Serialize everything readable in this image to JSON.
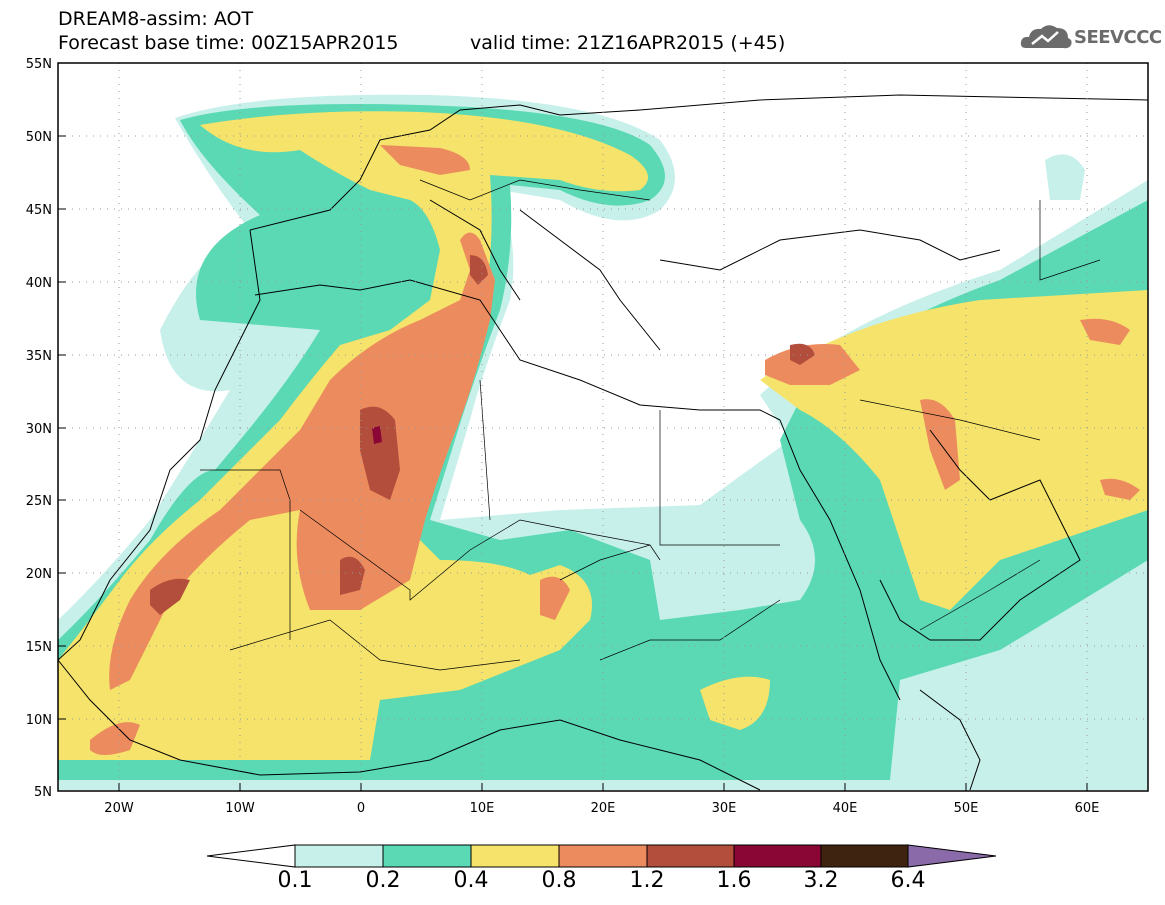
{
  "header": {
    "line1": "DREAM8-assim: AOT",
    "line2": "Forecast base time: 00Z15APR2015",
    "valid": "valid time: 21Z16APR2015 (+45)"
  },
  "logo": {
    "text": "SEEVCCC",
    "icon": "cloud-icon"
  },
  "map": {
    "lon_range": [
      -25,
      65
    ],
    "lat_range": [
      5,
      55
    ],
    "grid": "dotted",
    "lat_labels": [
      "55N",
      "50N",
      "45N",
      "40N",
      "35N",
      "30N",
      "25N",
      "20N",
      "15N",
      "10N",
      "5N"
    ],
    "lon_labels": [
      "20W",
      "10W",
      "0",
      "10E",
      "20E",
      "30E",
      "40E",
      "50E",
      "60E"
    ]
  },
  "colorbar": {
    "labels": [
      "0.1",
      "0.2",
      "0.4",
      "0.8",
      "1.2",
      "1.6",
      "3.2",
      "6.4"
    ],
    "colors": [
      "#ffffff",
      "#c7f0ea",
      "#5ad9b4",
      "#f5e36b",
      "#ec8c5e",
      "#b34d3c",
      "#8a0634",
      "#3e2410",
      "#8a6aa8"
    ]
  }
}
